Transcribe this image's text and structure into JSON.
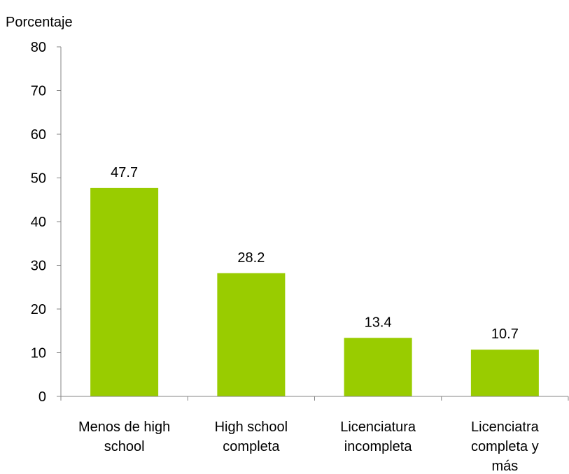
{
  "chart_data": {
    "type": "bar",
    "ylabel": "Porcentaje",
    "xlabel": "",
    "categories": [
      [
        "Menos de high",
        "school"
      ],
      [
        "High school",
        "completa"
      ],
      [
        "Licenciatura",
        "incompleta"
      ],
      [
        "Licenciatra",
        "completa y",
        "más"
      ]
    ],
    "values": [
      47.7,
      28.2,
      13.4,
      10.7
    ],
    "data_labels": [
      "47.7",
      "28.2",
      "13.4",
      "10.7"
    ],
    "ylim": [
      0,
      80
    ],
    "yticks": [
      0,
      10,
      20,
      30,
      40,
      50,
      60,
      70,
      80
    ],
    "grid": false,
    "legend": "none",
    "colors": {
      "bar": "#99cc00",
      "axis": "#868686",
      "text": "#000000"
    }
  }
}
